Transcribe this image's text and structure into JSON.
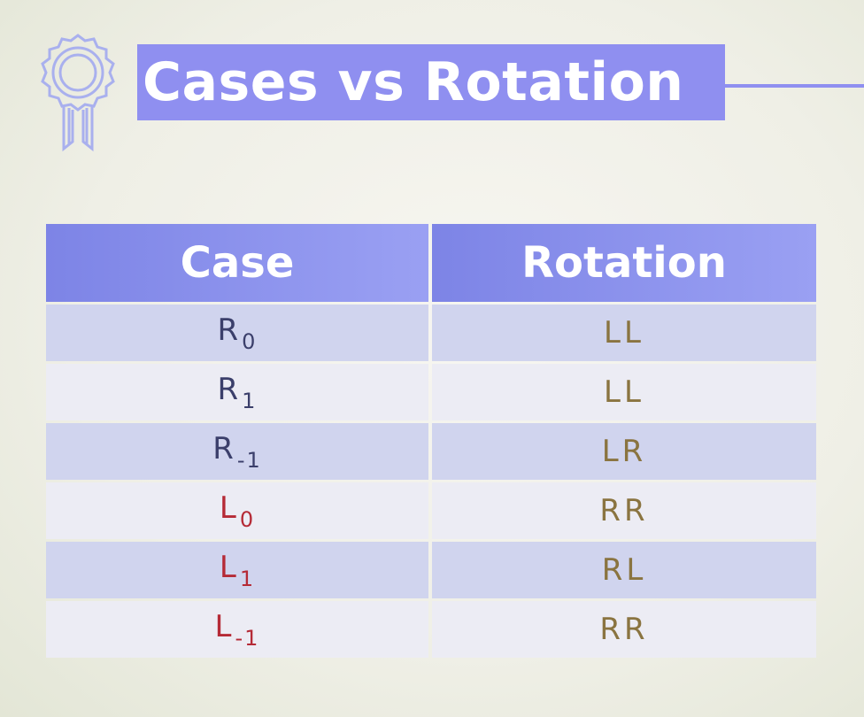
{
  "title": "Cases vs Rotation",
  "colors": {
    "accent": "#8f8ff0",
    "header": "#7d84e6",
    "case_r": "#3b3f6b",
    "case_l": "#b52a36",
    "rotation": "#8a7440"
  },
  "table": {
    "headers": [
      "Case",
      "Rotation"
    ],
    "rows": [
      {
        "case": "R",
        "sub": "0",
        "rotation": "LL"
      },
      {
        "case": "R",
        "sub": "1",
        "rotation": "LL"
      },
      {
        "case": "R",
        "sub": "-1",
        "rotation": "LR"
      },
      {
        "case": "L",
        "sub": "0",
        "rotation": "RR"
      },
      {
        "case": "L",
        "sub": "1",
        "rotation": "RL"
      },
      {
        "case": "L",
        "sub": "-1",
        "rotation": "RR"
      }
    ]
  }
}
